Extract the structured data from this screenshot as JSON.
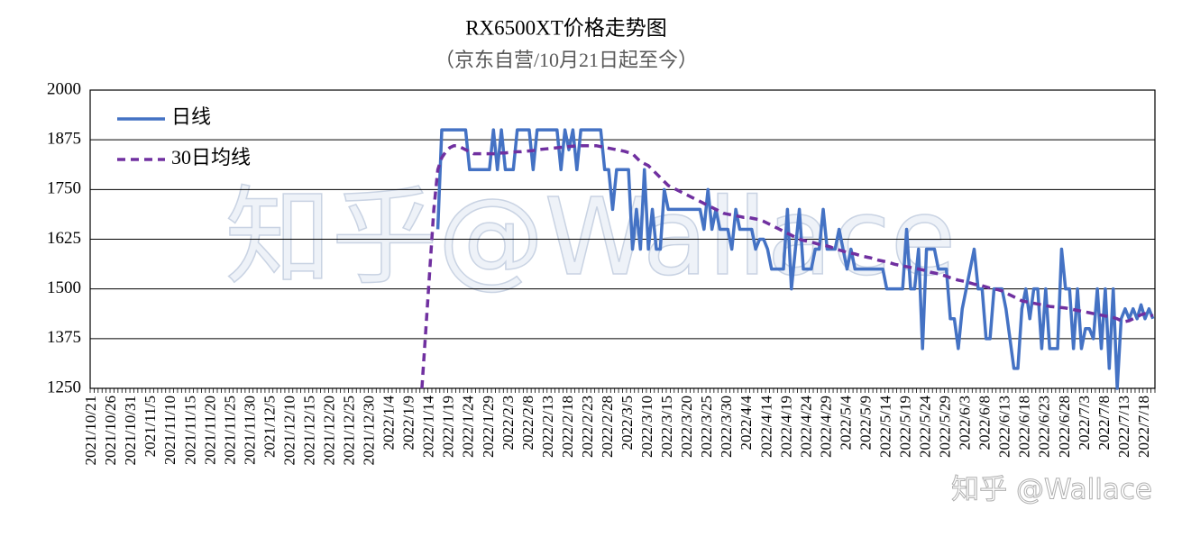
{
  "chart_data": {
    "type": "line",
    "title": "RX6500XT价格走势图",
    "subtitle": "（京东自营/10月21日起至今）",
    "watermarks": [
      "知乎@Wallace",
      "知乎 @Wallace"
    ],
    "ylim": [
      1250,
      2000
    ],
    "yticks": [
      1250,
      1375,
      1500,
      1625,
      1750,
      1875,
      2000
    ],
    "grid": true,
    "legend": "upper-left",
    "categories": [
      "2021/10/21",
      null,
      null,
      null,
      null,
      "2021/10/26",
      null,
      null,
      null,
      null,
      "2021/10/31",
      null,
      null,
      null,
      null,
      "2021/11/5",
      null,
      null,
      null,
      null,
      "2021/11/10",
      null,
      null,
      null,
      null,
      "2021/11/15",
      null,
      null,
      null,
      null,
      "2021/11/20",
      null,
      null,
      null,
      null,
      "2021/11/25",
      null,
      null,
      null,
      null,
      "2021/11/30",
      null,
      null,
      null,
      null,
      "2021/12/5",
      null,
      null,
      null,
      null,
      "2021/12/10",
      null,
      null,
      null,
      null,
      "2021/12/15",
      null,
      null,
      null,
      null,
      "2021/12/20",
      null,
      null,
      null,
      null,
      "2021/12/25",
      null,
      null,
      null,
      null,
      "2021/12/30",
      null,
      null,
      null,
      null,
      "2022/1/4",
      null,
      null,
      null,
      null,
      "2022/1/9",
      null,
      null,
      null,
      null,
      "2022/1/14",
      null,
      null,
      null,
      null,
      "2022/1/19",
      null,
      null,
      null,
      null,
      "2022/1/24",
      null,
      null,
      null,
      null,
      "2022/1/29",
      null,
      null,
      null,
      null,
      "2022/2/3",
      null,
      null,
      null,
      null,
      "2022/2/8",
      null,
      null,
      null,
      null,
      "2022/2/13",
      null,
      null,
      null,
      null,
      "2022/2/18",
      null,
      null,
      null,
      null,
      "2022/2/23",
      null,
      null,
      null,
      null,
      "2022/2/28",
      null,
      null,
      null,
      null,
      "2022/3/5",
      null,
      null,
      null,
      null,
      "2022/3/10",
      null,
      null,
      null,
      null,
      "2022/3/15",
      null,
      null,
      null,
      null,
      "2022/3/20",
      null,
      null,
      null,
      null,
      "2022/3/25",
      null,
      null,
      null,
      null,
      "2022/3/30",
      null,
      null,
      null,
      null,
      "2022/4/4",
      null,
      null,
      null,
      null,
      "2022/4/14",
      null,
      null,
      null,
      null,
      "2022/4/19",
      null,
      null,
      null,
      null,
      "2022/4/24",
      null,
      null,
      null,
      null,
      "2022/4/29",
      null,
      null,
      null,
      null,
      "2022/5/4",
      null,
      null,
      null,
      null,
      "2022/5/9",
      null,
      null,
      null,
      null,
      "2022/5/14",
      null,
      null,
      null,
      null,
      "2022/5/19",
      null,
      null,
      null,
      null,
      "2022/5/24",
      null,
      null,
      null,
      null,
      "2022/5/29",
      null,
      null,
      null,
      null,
      "2022/6/3",
      null,
      null,
      null,
      null,
      "2022/6/8",
      null,
      null,
      null,
      null,
      "2022/6/13",
      null,
      null,
      null,
      null,
      "2022/6/18",
      null,
      null,
      null,
      null,
      "2022/6/23",
      null,
      null,
      null,
      null,
      "2022/6/28",
      null,
      null,
      null,
      null,
      "2022/7/3",
      null,
      null,
      null,
      null,
      "2022/7/8",
      null,
      null,
      null,
      null,
      "2022/7/13",
      null,
      null,
      null,
      null,
      "2022/7/18",
      null,
      null
    ],
    "series": [
      {
        "name": "日线",
        "color": "#4472c4",
        "dash": "solid",
        "values": [
          null,
          null,
          null,
          null,
          null,
          null,
          null,
          null,
          null,
          null,
          null,
          null,
          null,
          null,
          null,
          null,
          null,
          null,
          null,
          null,
          null,
          null,
          null,
          null,
          null,
          null,
          null,
          null,
          null,
          null,
          null,
          null,
          null,
          null,
          null,
          null,
          null,
          null,
          null,
          null,
          null,
          null,
          null,
          null,
          null,
          null,
          null,
          null,
          null,
          null,
          null,
          null,
          null,
          null,
          null,
          null,
          null,
          null,
          null,
          null,
          null,
          null,
          null,
          null,
          null,
          null,
          null,
          null,
          null,
          null,
          null,
          null,
          null,
          null,
          null,
          null,
          null,
          null,
          null,
          null,
          null,
          null,
          null,
          null,
          null,
          null,
          null,
          1650,
          1900,
          1900,
          1900,
          1900,
          1900,
          1900,
          1900,
          1800,
          1800,
          1800,
          1800,
          1800,
          1800,
          1900,
          1800,
          1900,
          1800,
          1800,
          1800,
          1900,
          1900,
          1900,
          1900,
          1800,
          1900,
          1900,
          1900,
          1900,
          1900,
          1900,
          1800,
          1900,
          1850,
          1900,
          1800,
          1900,
          1900,
          1900,
          1900,
          1900,
          1900,
          1800,
          1800,
          1700,
          1800,
          1800,
          1800,
          1800,
          1600,
          1700,
          1600,
          1800,
          1600,
          1700,
          1600,
          1600,
          1750,
          1700,
          1700,
          1700,
          1700,
          1700,
          1700,
          1700,
          1700,
          1700,
          1650,
          1750,
          1650,
          1700,
          1650,
          1650,
          1650,
          1600,
          1700,
          1650,
          1650,
          1650,
          1650,
          1600,
          1625,
          1625,
          1600,
          1550,
          1550,
          1550,
          1550,
          1700,
          1500,
          1600,
          1700,
          1550,
          1550,
          1550,
          1600,
          1600,
          1700,
          1600,
          1600,
          1600,
          1650,
          1600,
          1550,
          1600,
          1550,
          1550,
          1550,
          1550,
          1550,
          1550,
          1550,
          1550,
          1500,
          1500,
          1500,
          1500,
          1500,
          1650,
          1500,
          1500,
          1600,
          1350,
          1600,
          1600,
          1600,
          1550,
          1550,
          1550,
          1425,
          1425,
          1350,
          1450,
          1500,
          1550,
          1600,
          1500,
          1500,
          1375,
          1375,
          1500,
          1500,
          1500,
          1450,
          1375,
          1300,
          1300,
          1450,
          1500,
          1425,
          1500,
          1500,
          1350,
          1500,
          1350,
          1350,
          1350,
          1600,
          1500,
          1500,
          1350,
          1500,
          1350,
          1400,
          1400,
          1375,
          1500,
          1350,
          1500,
          1300,
          1500,
          1250,
          1425,
          1450,
          1425,
          1450,
          1425,
          1460,
          1425,
          1450,
          1425
        ]
      },
      {
        "name": "30日均线",
        "color": "#7030a0",
        "dash": "dashed",
        "values": [
          null,
          null,
          null,
          null,
          null,
          null,
          null,
          null,
          null,
          null,
          null,
          null,
          null,
          null,
          null,
          null,
          null,
          null,
          null,
          null,
          null,
          null,
          null,
          null,
          null,
          null,
          null,
          null,
          null,
          null,
          null,
          null,
          null,
          null,
          null,
          null,
          null,
          null,
          null,
          null,
          null,
          null,
          null,
          null,
          null,
          null,
          null,
          null,
          null,
          null,
          null,
          null,
          null,
          null,
          null,
          null,
          null,
          null,
          null,
          null,
          null,
          null,
          null,
          null,
          null,
          null,
          null,
          null,
          null,
          null,
          null,
          null,
          null,
          null,
          null,
          null,
          null,
          null,
          null,
          null,
          null,
          null,
          null,
          1250,
          1400,
          1550,
          1700,
          1800,
          1830,
          1845,
          1855,
          1860,
          1860,
          1855,
          1850,
          1845,
          1840,
          1840,
          1840,
          1840,
          1840,
          1840,
          1840,
          1842,
          1842,
          1843,
          1844,
          1845,
          1845,
          1846,
          1847,
          1848,
          1850,
          1851,
          1852,
          1853,
          1854,
          1855,
          1856,
          1857,
          1858,
          1859,
          1860,
          1860,
          1860,
          1860,
          1860,
          1860,
          1858,
          1856,
          1854,
          1852,
          1850,
          1848,
          1846,
          1843,
          1840,
          1830,
          1820,
          1815,
          1810,
          1800,
          1790,
          1780,
          1770,
          1760,
          1755,
          1750,
          1745,
          1740,
          1735,
          1730,
          1725,
          1720,
          1715,
          1710,
          1705,
          1700,
          1695,
          1690,
          1688,
          1686,
          1684,
          1682,
          1680,
          1680,
          1678,
          1676,
          1674,
          1670,
          1665,
          1660,
          1655,
          1650,
          1645,
          1640,
          1635,
          1630,
          1625,
          1622,
          1620,
          1618,
          1615,
          1612,
          1610,
          1608,
          1605,
          1600,
          1598,
          1595,
          1592,
          1590,
          1588,
          1585,
          1582,
          1580,
          1578,
          1575,
          1572,
          1570,
          1568,
          1565,
          1562,
          1560,
          1558,
          1556,
          1554,
          1552,
          1550,
          1548,
          1545,
          1542,
          1540,
          1538,
          1535,
          1532,
          1528,
          1525,
          1522,
          1520,
          1518,
          1515,
          1512,
          1510,
          1508,
          1505,
          1502,
          1500,
          1498,
          1495,
          1490,
          1485,
          1480,
          1475,
          1470,
          1468,
          1466,
          1464,
          1462,
          1460,
          1458,
          1456,
          1455,
          1454,
          1453,
          1452,
          1450,
          1448,
          1446,
          1444,
          1442,
          1440,
          1438,
          1436,
          1434,
          1432,
          1430,
          1428,
          1425,
          1420,
          1418,
          1420,
          1425,
          1430,
          1435,
          1438,
          1436,
          1432
        ]
      }
    ]
  }
}
